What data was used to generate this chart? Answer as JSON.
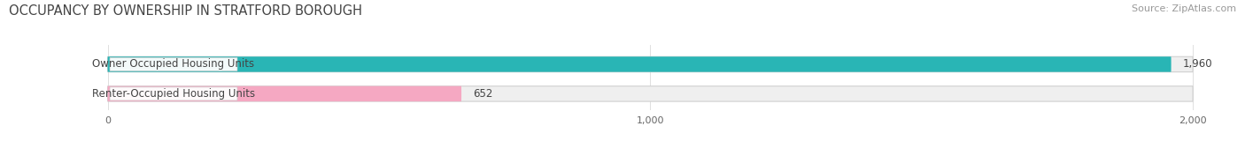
{
  "title": "OCCUPANCY BY OWNERSHIP IN STRATFORD BOROUGH",
  "source": "Source: ZipAtlas.com",
  "categories": [
    "Owner Occupied Housing Units",
    "Renter-Occupied Housing Units"
  ],
  "values": [
    1960,
    652
  ],
  "bar_colors": [
    "#29b5b5",
    "#f5a8c2"
  ],
  "xlim": [
    -180,
    2080
  ],
  "data_min": 0,
  "data_max": 2000,
  "xticks": [
    0,
    1000,
    2000
  ],
  "xtick_labels": [
    "0",
    "1,000",
    "2,000"
  ],
  "bar_height": 0.52,
  "title_fontsize": 10.5,
  "label_fontsize": 8.5,
  "value_fontsize": 8.5,
  "source_fontsize": 8,
  "background_color": "#ffffff",
  "bar_bg_color": "#efefef",
  "bar_border_color": "#d0d0d0",
  "label_box_color": "#ffffff",
  "label_box_border": "#cccccc",
  "text_color": "#444444",
  "source_color": "#999999",
  "gridline_color": "#e0e0e0"
}
